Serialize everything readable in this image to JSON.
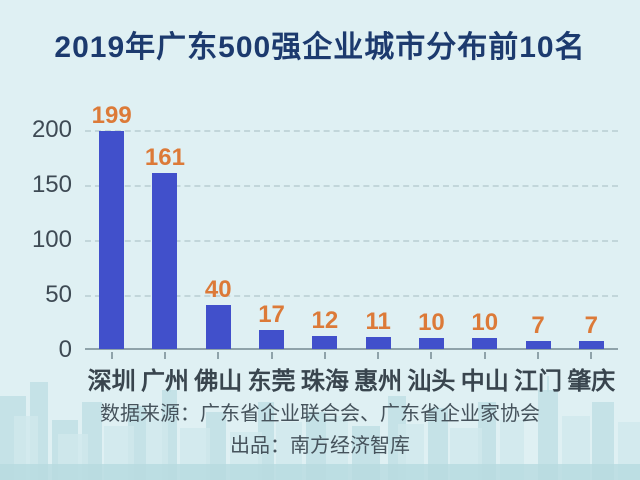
{
  "title": "2019年广东500强企业城市分布前10名",
  "chart_data": {
    "type": "bar",
    "title": "2019年广东500强企业城市分布前10名",
    "categories": [
      "深圳",
      "广州",
      "佛山",
      "东莞",
      "珠海",
      "惠州",
      "汕头",
      "中山",
      "江门",
      "肇庆"
    ],
    "values": [
      199,
      161,
      40,
      17,
      12,
      11,
      10,
      10,
      7,
      7
    ],
    "xlabel": "",
    "ylabel": "",
    "ylim": [
      0,
      200
    ],
    "yticks": [
      0,
      50,
      100,
      150,
      200
    ],
    "grid": "horizontal-dashed",
    "legend": "none",
    "bar_color": "#4150CB",
    "value_label_color": "#DC7A38"
  },
  "yaxis": {
    "labels": [
      "200",
      "150",
      "100",
      "50",
      "0"
    ]
  },
  "footer": {
    "source_line": "数据来源：广东省企业联合会、广东省企业家协会",
    "producer_line": "出品：南方经济智库"
  },
  "colors": {
    "background": "#DFF0F3",
    "title_text": "#1C3A6E",
    "bar": "#4150CB",
    "value_label": "#DC7A38",
    "axis_text": "#3E4A54",
    "gridline": "#C2D6DA",
    "axis_line": "#8FA3AA",
    "source_text": "#46535C",
    "skyline": "#BCDEE3"
  }
}
